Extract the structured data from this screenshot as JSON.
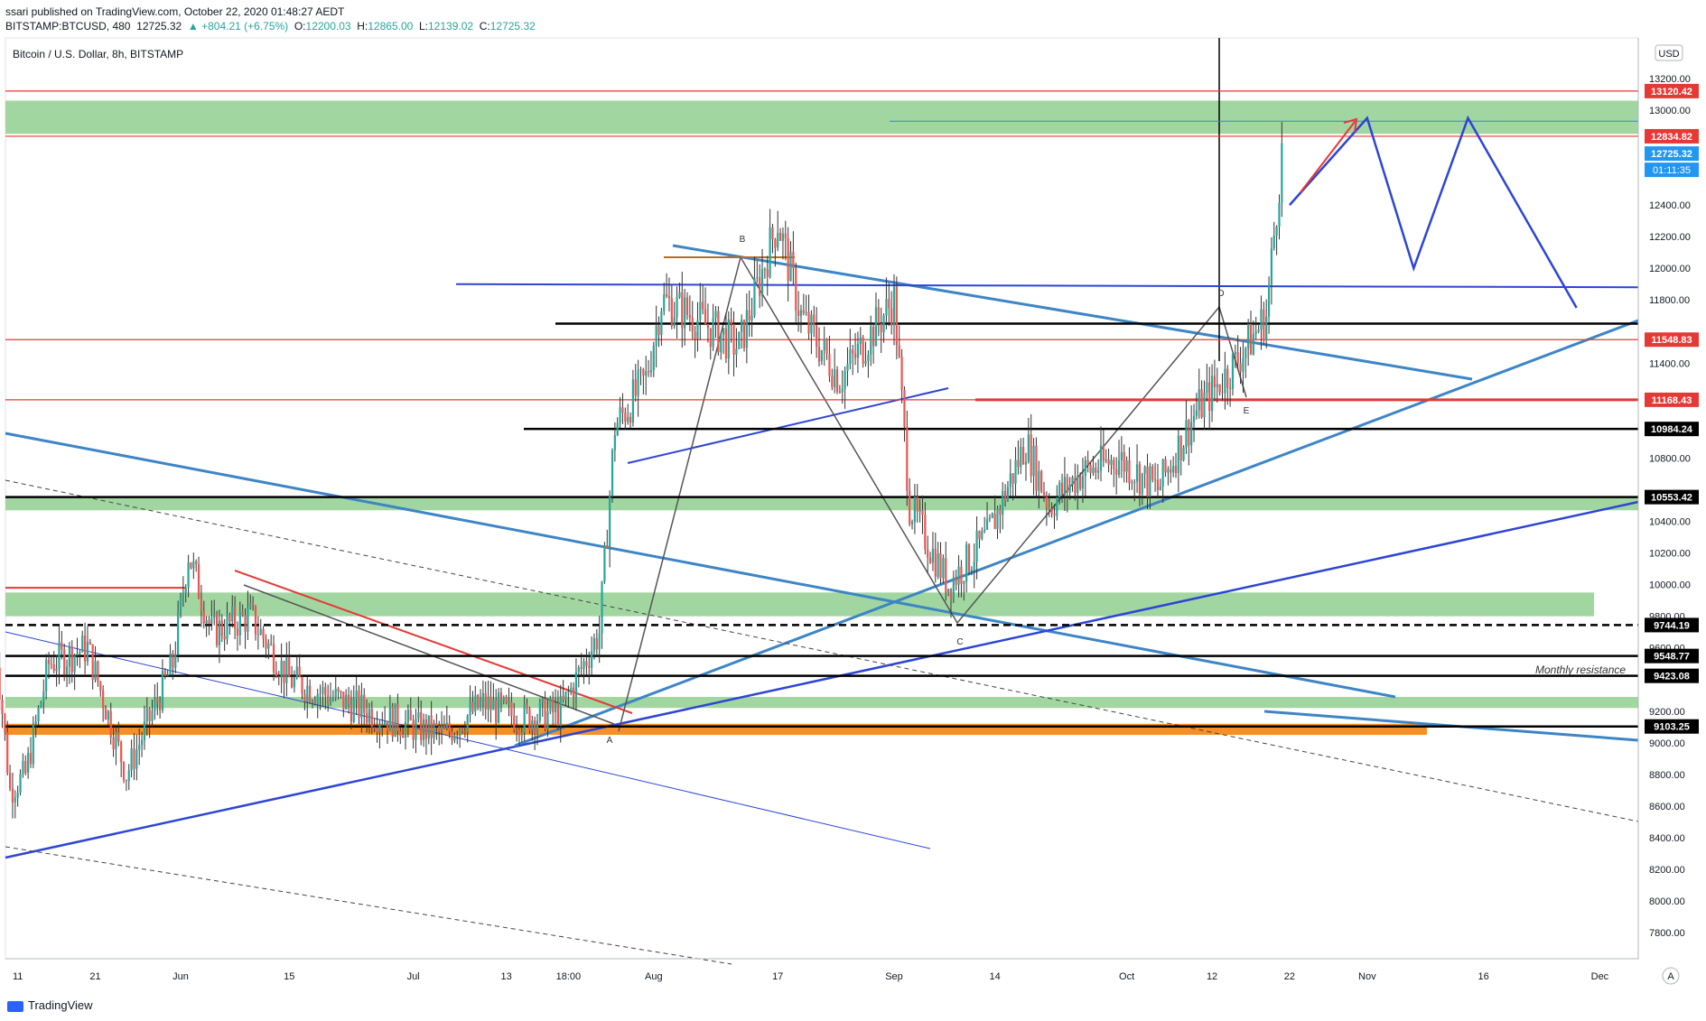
{
  "header": {
    "published": "ssari published on TradingView.com, October 22, 2020 01:48:27 AEDT",
    "symbol": "BITSTAMP:BTCUSD, 480",
    "last": "12725.32",
    "change": "▲ +804.21 (+6.75%)",
    "ohlc_o_label": "O:",
    "ohlc_o": "12200.03",
    "ohlc_h_label": "H:",
    "ohlc_h": "12865.00",
    "ohlc_l_label": "L:",
    "ohlc_l": "12139.02",
    "ohlc_c_label": "C:",
    "ohlc_c": "12725.32"
  },
  "legend_title": "Bitcoin / U.S. Dollar, 8h, BITSTAMP",
  "currency_button": "USD",
  "price_timer": "01:11:35",
  "footer_brand": "TradingView",
  "auto_scale_button": "A",
  "colors": {
    "up": "#26a69a",
    "down": "#ef5350",
    "wave_blue": "#2d45d4",
    "trend_blue": "#3d85c6",
    "red_line": "#e53935",
    "green_zone": "#9dd49b",
    "black_line": "#000000",
    "orange_zone": "#f57c00"
  },
  "annotations": {
    "monthly_resistance": "Monthly resistance",
    "pattern_points": [
      "A",
      "B",
      "C",
      "D",
      "E"
    ]
  },
  "chart_data": {
    "type": "candlestick",
    "title": "Bitcoin / U.S. Dollar, 8h, BITSTAMP",
    "x_ticks": [
      "11",
      "21",
      "Jun",
      "15",
      "Jul",
      "13",
      "18:00",
      "Aug",
      "17",
      "Sep",
      "14",
      "Oct",
      "12",
      "22",
      "Nov",
      "16",
      "Dec"
    ],
    "y_ticks": [
      "13200.00",
      "13000.00",
      "12400.00",
      "12200.00",
      "12000.00",
      "11800.00",
      "11400.00",
      "10800.00",
      "10400.00",
      "10200.00",
      "10000.00",
      "9800.00",
      "9600.00",
      "9200.00",
      "9000.00",
      "8800.00",
      "8600.00",
      "8400.00",
      "8200.00",
      "8000.00",
      "7800.00"
    ],
    "ylim": [
      7600,
      13400
    ],
    "price_labels": [
      {
        "value": 13120.42,
        "text": "13120.42",
        "color": "#e53935"
      },
      {
        "value": 12834.82,
        "text": "12834.82",
        "color": "#e53935"
      },
      {
        "value": 12725.32,
        "text": "12725.32",
        "color": "#2196f3"
      },
      {
        "value": 11548.83,
        "text": "11548.83",
        "color": "#e53935"
      },
      {
        "value": 11168.43,
        "text": "11168.43",
        "color": "#e53935"
      },
      {
        "value": 10984.24,
        "text": "10984.24",
        "color": "#000000"
      },
      {
        "value": 10553.42,
        "text": "10553.42",
        "color": "#000000"
      },
      {
        "value": 9744.19,
        "text": "9744.19",
        "color": "#000000"
      },
      {
        "value": 9548.77,
        "text": "9548.77",
        "color": "#000000"
      },
      {
        "value": 9423.08,
        "text": "9423.08",
        "color": "#000000"
      },
      {
        "value": 9103.25,
        "text": "9103.25",
        "color": "#000000"
      }
    ],
    "close_path": [
      {
        "date": "2020-05-08",
        "close": 9700
      },
      {
        "date": "2020-05-10",
        "close": 8700
      },
      {
        "date": "2020-05-12",
        "close": 8800
      },
      {
        "date": "2020-05-15",
        "close": 9500
      },
      {
        "date": "2020-05-20",
        "close": 9600
      },
      {
        "date": "2020-05-25",
        "close": 8800
      },
      {
        "date": "2020-05-31",
        "close": 9500
      },
      {
        "date": "2020-06-02",
        "close": 10200
      },
      {
        "date": "2020-06-05",
        "close": 9700
      },
      {
        "date": "2020-06-10",
        "close": 9800
      },
      {
        "date": "2020-06-15",
        "close": 9400
      },
      {
        "date": "2020-06-20",
        "close": 9300
      },
      {
        "date": "2020-06-25",
        "close": 9200
      },
      {
        "date": "2020-07-01",
        "close": 9100
      },
      {
        "date": "2020-07-05",
        "close": 9050
      },
      {
        "date": "2020-07-10",
        "close": 9250
      },
      {
        "date": "2020-07-15",
        "close": 9150
      },
      {
        "date": "2020-07-20",
        "close": 9200
      },
      {
        "date": "2020-07-25",
        "close": 9700
      },
      {
        "date": "2020-07-27",
        "close": 11000
      },
      {
        "date": "2020-07-31",
        "close": 11300
      },
      {
        "date": "2020-08-02",
        "close": 11800
      },
      {
        "date": "2020-08-06",
        "close": 11700
      },
      {
        "date": "2020-08-12",
        "close": 11500
      },
      {
        "date": "2020-08-17",
        "close": 12300
      },
      {
        "date": "2020-08-20",
        "close": 11700
      },
      {
        "date": "2020-08-25",
        "close": 11300
      },
      {
        "date": "2020-09-01",
        "close": 11800
      },
      {
        "date": "2020-09-03",
        "close": 10500
      },
      {
        "date": "2020-09-08",
        "close": 10000
      },
      {
        "date": "2020-09-13",
        "close": 10300
      },
      {
        "date": "2020-09-18",
        "close": 10900
      },
      {
        "date": "2020-09-21",
        "close": 10500
      },
      {
        "date": "2020-09-25",
        "close": 10700
      },
      {
        "date": "2020-09-30",
        "close": 10800
      },
      {
        "date": "2020-10-05",
        "close": 10600
      },
      {
        "date": "2020-10-10",
        "close": 11100
      },
      {
        "date": "2020-10-15",
        "close": 11400
      },
      {
        "date": "2020-10-19",
        "close": 11700
      },
      {
        "date": "2020-10-21",
        "close": 12725
      }
    ],
    "horizontal_levels": [
      {
        "value": 13120.42,
        "color": "#e53935"
      },
      {
        "value": 12834.82,
        "color": "#e53935"
      },
      {
        "value": 11548.83,
        "color": "#e53935"
      },
      {
        "value": 11168.43,
        "color": "#e53935"
      },
      {
        "value": 10984.24,
        "color": "#000000"
      },
      {
        "value": 10553.42,
        "color": "#000000"
      },
      {
        "value": 9744.19,
        "color": "#000000"
      },
      {
        "value": 9548.77,
        "color": "#000000"
      },
      {
        "value": 9423.08,
        "color": "#000000"
      },
      {
        "value": 9103.25,
        "color": "#000000"
      }
    ],
    "zones": [
      {
        "from": 12850,
        "to": 13060,
        "color": "#9dd49b"
      },
      {
        "from": 10470,
        "to": 10553,
        "color": "#9dd49b"
      },
      {
        "from": 9800,
        "to": 9950,
        "color": "#9dd49b"
      },
      {
        "from": 9220,
        "to": 9290,
        "color": "#9dd49b"
      },
      {
        "from": 9050,
        "to": 9120,
        "color": "#f57c00"
      }
    ],
    "projection": [
      {
        "date": "2020-10-22",
        "price": 12400
      },
      {
        "date": "2020-11-01",
        "price": 12950
      },
      {
        "date": "2020-11-07",
        "price": 12000
      },
      {
        "date": "2020-11-14",
        "price": 12950
      },
      {
        "date": "2020-11-28",
        "price": 11750
      }
    ],
    "grid": false,
    "legend": "top-left"
  }
}
